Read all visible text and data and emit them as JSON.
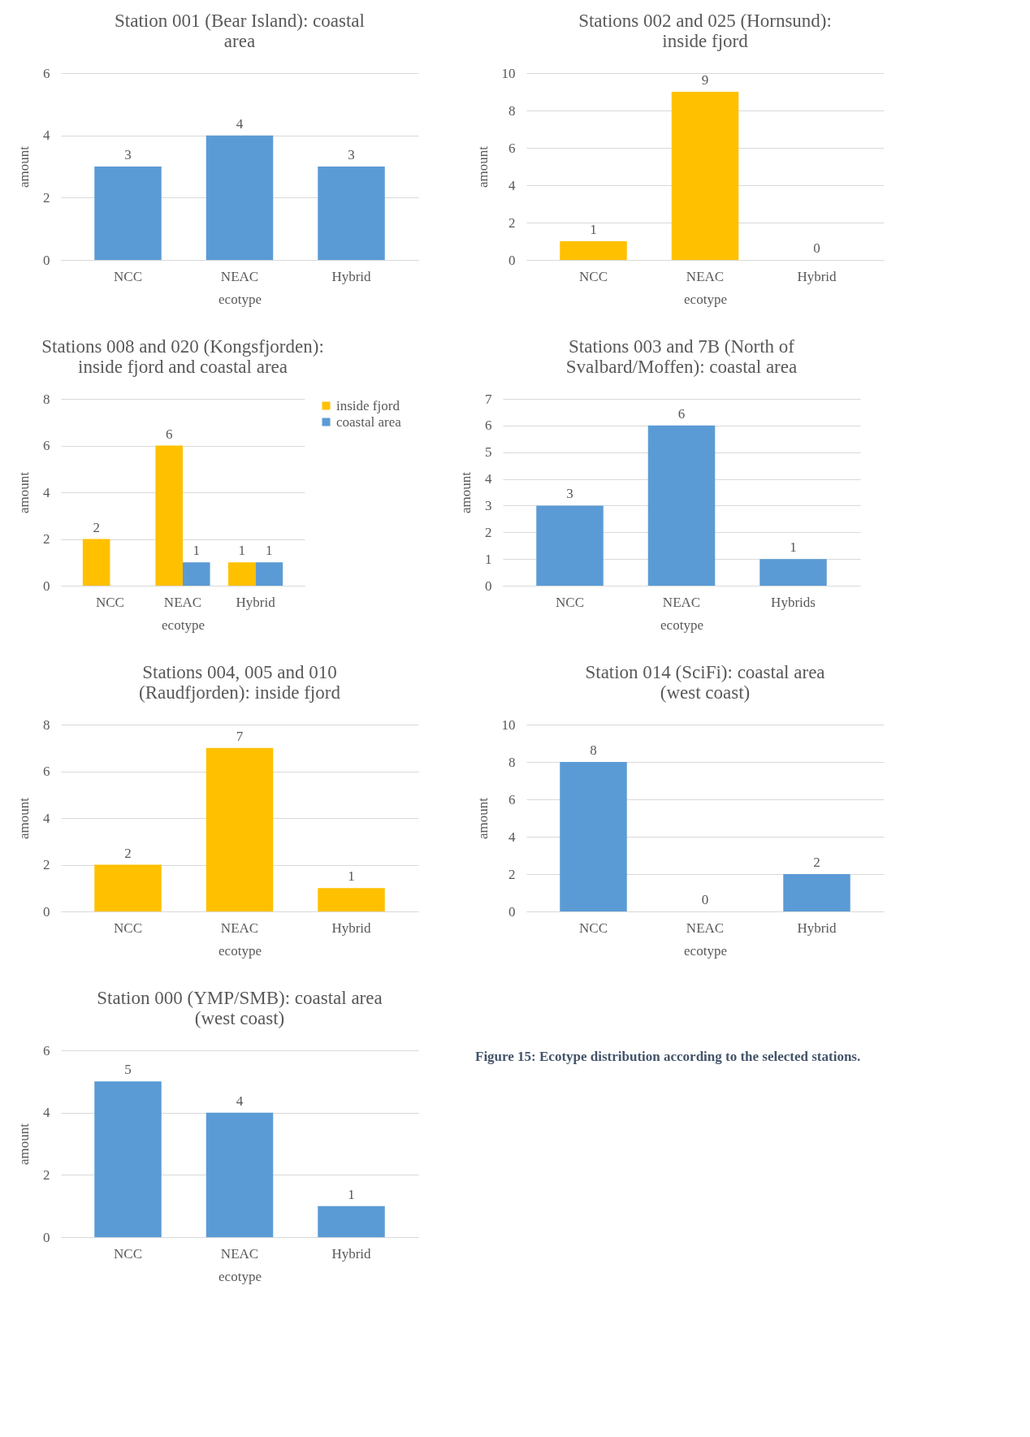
{
  "chart_data": [
    {
      "type": "bar",
      "title": "Station 001 (Bear Island): coastal area",
      "xlabel": "ecotype",
      "ylabel": "amount",
      "categories": [
        "NCC",
        "NEAC",
        "Hybrid"
      ],
      "values": [
        3,
        4,
        3
      ],
      "color": "#5b9bd5",
      "ylim": [
        0,
        6
      ],
      "yticks": [
        0,
        2,
        4,
        6
      ],
      "grid": "y",
      "data_labels": true
    },
    {
      "type": "bar",
      "title": "Stations 002 and 025 (Hornsund): inside fjord",
      "xlabel": "ecotype",
      "ylabel": "amount",
      "categories": [
        "NCC",
        "NEAC",
        "Hybrid"
      ],
      "values": [
        1,
        9,
        0
      ],
      "color": "#ffc000",
      "ylim": [
        0,
        10
      ],
      "yticks": [
        0,
        2,
        4,
        6,
        8,
        10
      ],
      "grid": "y",
      "data_labels": true
    },
    {
      "type": "bar",
      "title": "Stations 008 and 020 (Kongsfjorden): inside fjord and coastal area",
      "xlabel": "ecotype",
      "ylabel": "amount",
      "categories": [
        "NCC",
        "NEAC",
        "Hybrid"
      ],
      "series": [
        {
          "name": "inside fjord",
          "color": "#ffc000",
          "values": [
            2,
            6,
            1
          ]
        },
        {
          "name": "coastal area",
          "color": "#5b9bd5",
          "values": [
            null,
            1,
            1
          ]
        }
      ],
      "ylim": [
        0,
        8
      ],
      "yticks": [
        0,
        2,
        4,
        6,
        8
      ],
      "grid": "y",
      "legend": "right",
      "data_labels": true
    },
    {
      "type": "bar",
      "title": "Stations 003 and 7B (North of Svalbard/Moffen): coastal area",
      "xlabel": "ecotype",
      "ylabel": "amount",
      "categories": [
        "NCC",
        "NEAC",
        "Hybrids"
      ],
      "values": [
        3,
        6,
        1
      ],
      "color": "#5b9bd5",
      "ylim": [
        0,
        7
      ],
      "yticks": [
        0,
        1,
        2,
        3,
        4,
        5,
        6,
        7
      ],
      "grid": "y",
      "data_labels": true
    },
    {
      "type": "bar",
      "title": "Stations 004, 005 and 010 (Raudfjorden): inside fjord",
      "xlabel": "ecotype",
      "ylabel": "amount",
      "categories": [
        "NCC",
        "NEAC",
        "Hybrid"
      ],
      "values": [
        2,
        7,
        1
      ],
      "color": "#ffc000",
      "ylim": [
        0,
        8
      ],
      "yticks": [
        0,
        2,
        4,
        6,
        8
      ],
      "grid": "y",
      "data_labels": true
    },
    {
      "type": "bar",
      "title": "Station 014 (SciFi): coastal area (west coast)",
      "xlabel": "ecotype",
      "ylabel": "amount",
      "categories": [
        "NCC",
        "NEAC",
        "Hybrid"
      ],
      "values": [
        8,
        0,
        2
      ],
      "color": "#5b9bd5",
      "ylim": [
        0,
        10
      ],
      "yticks": [
        0,
        2,
        4,
        6,
        8,
        10
      ],
      "grid": "y",
      "data_labels": true
    },
    {
      "type": "bar",
      "title": "Station 000 (YMP/SMB): coastal area (west coast)",
      "xlabel": "ecotype",
      "ylabel": "amount",
      "categories": [
        "NCC",
        "NEAC",
        "Hybrid"
      ],
      "values": [
        5,
        4,
        1
      ],
      "color": "#5b9bd5",
      "ylim": [
        0,
        6
      ],
      "yticks": [
        0,
        2,
        4,
        6
      ],
      "grid": "y",
      "data_labels": true,
      "annotations": [
        "Figure 15: Ecotype distribution according to the selected stations."
      ]
    }
  ]
}
